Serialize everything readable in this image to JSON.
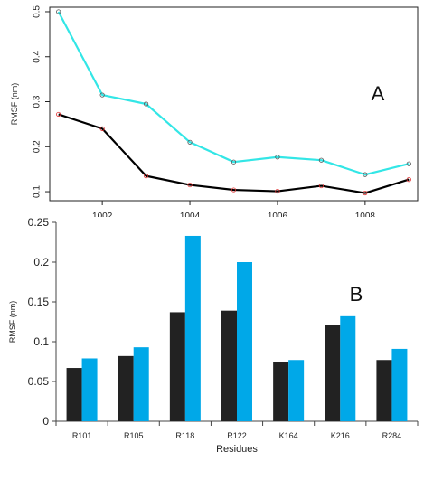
{
  "chart_data": [
    {
      "type": "line",
      "panel_label": "A",
      "title": "",
      "xlabel": "",
      "ylabel": "RMSF (nm)",
      "xlim": [
        1001,
        1009
      ],
      "ylim": [
        0.1,
        0.5
      ],
      "xticks": [
        1002,
        1004,
        1006,
        1008
      ],
      "yticks": [
        0.1,
        0.2,
        0.3,
        0.4,
        0.5
      ],
      "grid": false,
      "x": [
        1001,
        1002,
        1003,
        1004,
        1005,
        1006,
        1007,
        1008,
        1009
      ],
      "series": [
        {
          "color": "#33e6e6",
          "marker_color": "#555555",
          "values": [
            0.5,
            0.315,
            0.295,
            0.21,
            0.166,
            0.177,
            0.17,
            0.138,
            0.162
          ]
        },
        {
          "color": "#000000",
          "marker_color": "#e03030",
          "values": [
            0.272,
            0.24,
            0.135,
            0.115,
            0.104,
            0.101,
            0.113,
            0.097,
            0.127
          ]
        }
      ]
    },
    {
      "type": "bar",
      "panel_label": "B",
      "title": "",
      "xlabel": "Residues",
      "ylabel": "RMSF (nm)",
      "ylim": [
        0,
        0.25
      ],
      "yticks": [
        "0",
        "0.05",
        "0.1",
        "0.15",
        "0.2",
        "0.25"
      ],
      "grid": false,
      "categories": [
        "R101",
        "R105",
        "R118",
        "R122",
        "K164",
        "K216",
        "R284"
      ],
      "series": [
        {
          "color": "#222222",
          "values": [
            0.067,
            0.082,
            0.137,
            0.139,
            0.075,
            0.121,
            0.077
          ]
        },
        {
          "color": "#00a8e8",
          "values": [
            0.079,
            0.093,
            0.233,
            0.2,
            0.077,
            0.132,
            0.091
          ]
        }
      ]
    }
  ]
}
